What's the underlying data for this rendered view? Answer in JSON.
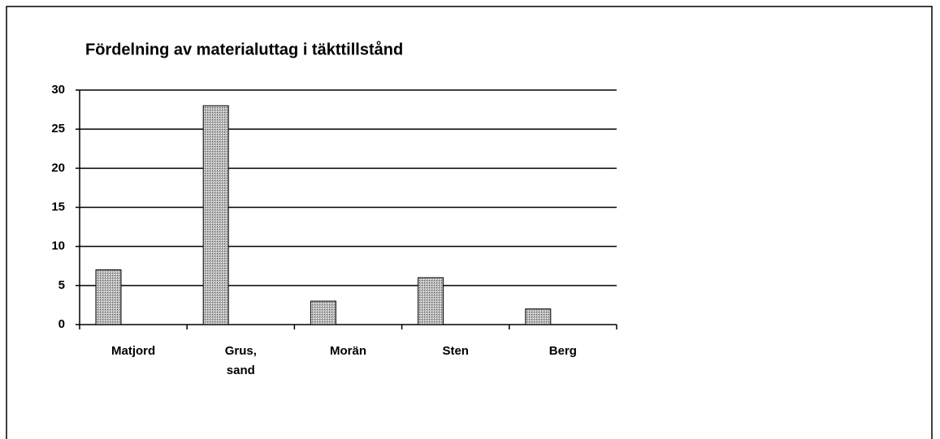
{
  "chart_data": {
    "type": "bar",
    "title": "Fördelning av materialuttag i täkttillstånd",
    "categories": [
      "Matjord",
      "Grus, sand",
      "Morän",
      "Sten",
      "Berg"
    ],
    "values": [
      7,
      28,
      3,
      6,
      2
    ],
    "color": "#b8b8b8",
    "ylim": [
      0,
      30
    ],
    "yticks": [
      0,
      5,
      10,
      15,
      20,
      25,
      30
    ],
    "grid": true
  }
}
